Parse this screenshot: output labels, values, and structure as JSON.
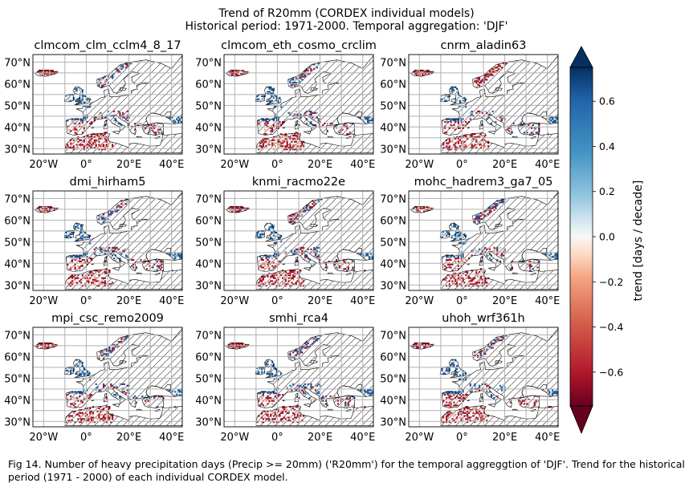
{
  "figure": {
    "title_line1": "Trend of R20mm (CORDEX individual models)",
    "title_line2": "Historical period: 1971-2000. Temporal aggregation: 'DJF'",
    "caption": "Fig 14. Number of heavy precipitation days (Precip >= 20mm) ('R20mm') for the temporal aggreggtion of 'DJF'. Trend for the historical period (1971 - 2000) of each individual CORDEX model."
  },
  "chart_data": {
    "type": "heatmap",
    "panel_titles": [
      "clmcom_clm_cclm4_8_17",
      "clmcom_eth_cosmo_crclim",
      "cnrm_aladin63",
      "dmi_hirham5",
      "knmi_racmo22e",
      "mohc_hadrem3_ga7_05",
      "mpi_csc_remo2009",
      "smhi_rca4",
      "uhoh_wrf361h"
    ],
    "x_ticks": [
      "20°W",
      "0°",
      "20°E",
      "40°E"
    ],
    "y_ticks": [
      "70°N",
      "60°N",
      "50°N",
      "40°N",
      "30°N"
    ],
    "colorbar": {
      "label": "trend [days / decade]",
      "ticks": [
        "0.6",
        "0.4",
        "0.2",
        "0.0",
        "−0.2",
        "−0.4",
        "−0.6"
      ],
      "range": [
        -0.75,
        0.75
      ],
      "colormap": "RdBu",
      "extend": "both"
    },
    "hatching": "non-significant area (diagonal lines)"
  },
  "colors": {
    "positive": "#1f5b9a",
    "negative": "#a5142a",
    "light_positive": "#8fc2dd",
    "light_negative": "#e8937a",
    "grid": "#b0b0b0",
    "coast": "#000000"
  }
}
